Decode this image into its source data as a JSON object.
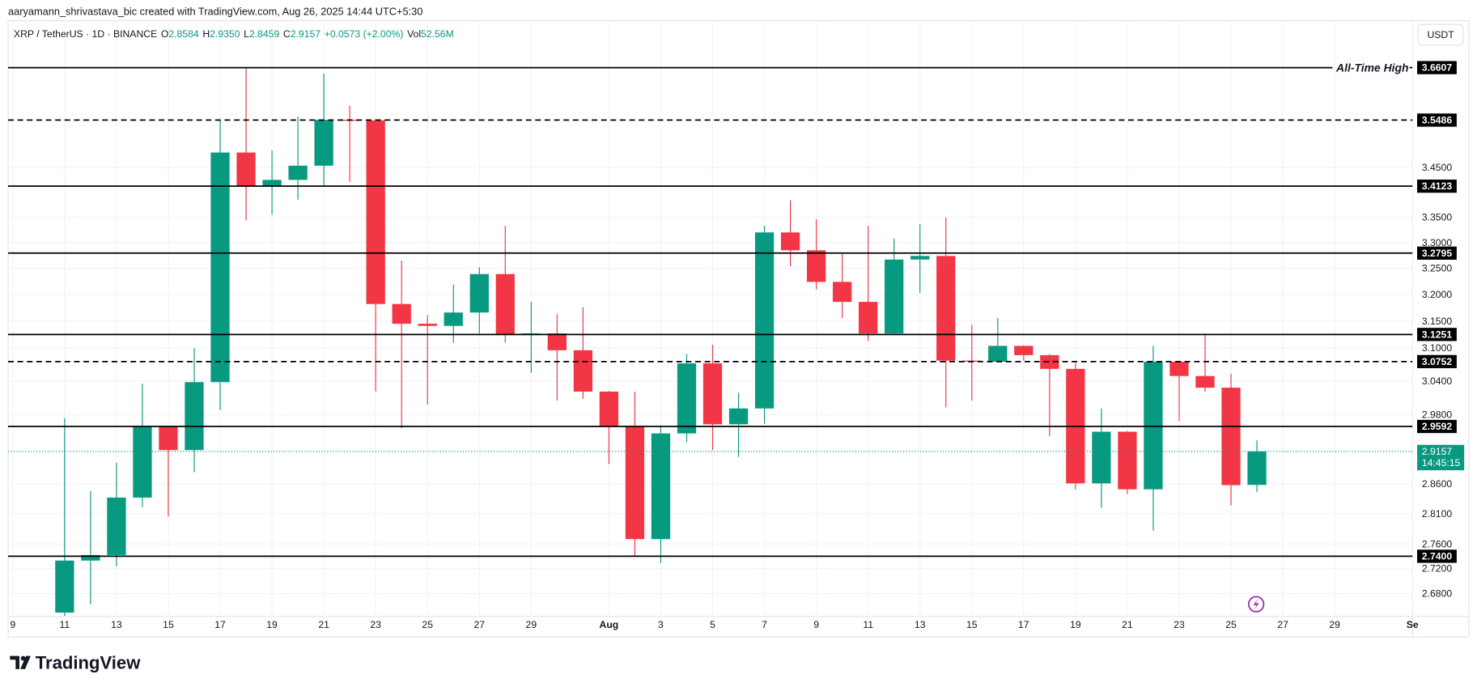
{
  "header": {
    "creator": "aaryamann_shrivastava_bic created with TradingView.com, Aug 26, 2025 14:44 UTC+5:30"
  },
  "chart_data": {
    "type": "candlestick",
    "symbol": "XRP / TetherUS · 1D · BINANCE",
    "legend_values": [
      {
        "label": "O",
        "value": "2.8584"
      },
      {
        "label": "H",
        "value": "2.9350"
      },
      {
        "label": "L",
        "value": "2.8459"
      },
      {
        "label": "C",
        "value": "2.9157"
      }
    ],
    "change": "+0.0573 (+2.00%)",
    "volume": {
      "label": "Vol",
      "value": "52.56M"
    },
    "currency": "USDT",
    "categories": [
      "9",
      null,
      "11",
      null,
      "13",
      null,
      "15",
      null,
      "17",
      null,
      "19",
      null,
      "21",
      null,
      "23",
      null,
      "25",
      null,
      "27",
      null,
      "29",
      null,
      null,
      "Aug",
      null,
      "3",
      null,
      "5",
      null,
      "7",
      null,
      "9",
      null,
      "11",
      null,
      "13",
      null,
      "15",
      null,
      "17",
      null,
      "19",
      null,
      "21",
      null,
      "23",
      null,
      "25",
      null,
      "27",
      null,
      "29",
      null,
      null,
      "Se"
    ],
    "open": [
      null,
      null,
      2.65,
      2.733,
      2.742,
      2.837,
      2.959,
      2.918,
      3.038,
      3.481,
      3.412,
      3.425,
      3.454,
      3.549,
      3.548,
      3.182,
      3.145,
      3.141,
      3.166,
      3.239,
      3.124,
      3.127,
      3.096,
      3.021,
      2.959,
      2.768,
      2.947,
      3.072,
      2.963,
      2.991,
      3.32,
      3.285,
      3.224,
      3.186,
      3.127,
      3.267,
      3.274,
      3.077,
      3.075,
      3.104,
      3.087,
      3.062,
      2.861,
      2.95,
      2.851,
      3.075,
      3.049,
      3.028,
      2.8584,
      null,
      null,
      null,
      null,
      null,
      null
    ],
    "high": [
      null,
      null,
      2.974,
      2.848,
      2.896,
      3.035,
      2.96,
      3.1,
      3.549,
      3.661,
      3.485,
      3.556,
      3.648,
      3.579,
      3.549,
      3.265,
      3.161,
      3.219,
      3.252,
      3.333,
      3.186,
      3.163,
      3.176,
      3.022,
      3.021,
      2.961,
      3.089,
      3.106,
      3.019,
      3.333,
      3.384,
      3.346,
      3.278,
      3.333,
      3.308,
      3.336,
      3.349,
      3.143,
      3.156,
      3.105,
      3.089,
      3.073,
      2.991,
      2.951,
      3.104,
      3.076,
      3.127,
      3.053,
      2.935,
      null,
      null,
      null,
      null,
      null,
      null
    ],
    "low": [
      null,
      null,
      2.645,
      2.663,
      2.724,
      2.821,
      2.805,
      2.88,
      2.988,
      3.344,
      3.355,
      3.385,
      3.412,
      3.421,
      3.021,
      2.956,
      2.998,
      3.11,
      3.127,
      3.11,
      3.055,
      3.005,
      3.008,
      2.894,
      2.741,
      2.729,
      2.932,
      2.918,
      2.906,
      2.964,
      3.254,
      3.21,
      3.156,
      3.113,
      3.126,
      3.203,
      2.993,
      3.005,
      3.074,
      3.077,
      2.942,
      2.851,
      2.82,
      2.843,
      2.782,
      2.969,
      3.021,
      2.824,
      2.8459,
      null,
      null,
      null,
      null,
      null,
      null
    ],
    "close": [
      null,
      null,
      2.733,
      2.742,
      2.837,
      2.959,
      2.918,
      3.038,
      3.481,
      3.412,
      3.425,
      3.454,
      3.549,
      3.548,
      3.182,
      3.145,
      3.141,
      3.166,
      3.239,
      3.124,
      3.127,
      3.096,
      3.021,
      2.959,
      2.768,
      2.947,
      3.072,
      2.963,
      2.991,
      3.32,
      3.285,
      3.224,
      3.186,
      3.127,
      3.267,
      3.274,
      3.077,
      3.075,
      3.104,
      3.087,
      3.062,
      2.861,
      2.95,
      2.851,
      3.075,
      3.049,
      3.028,
      2.858,
      2.9157,
      null,
      null,
      null,
      null,
      null,
      null
    ],
    "up_color": "#089981",
    "down_color": "#f23645",
    "log_scale": true,
    "grid": true,
    "ylim": [
      2.644,
      3.764
    ],
    "yticks": [
      {
        "value": 3.45,
        "label": "3.4500"
      },
      {
        "value": 3.35,
        "label": "3.3500"
      },
      {
        "value": 3.3,
        "label": "3.3000"
      },
      {
        "value": 3.25,
        "label": "3.2500"
      },
      {
        "value": 3.2,
        "label": "3.2000"
      },
      {
        "value": 3.15,
        "label": "3.1500"
      },
      {
        "value": 3.1,
        "label": "3.1000"
      },
      {
        "value": 3.04,
        "label": "3.0400"
      },
      {
        "value": 2.98,
        "label": "2.9800"
      },
      {
        "value": 2.86,
        "label": "2.8600"
      },
      {
        "value": 2.81,
        "label": "2.8100"
      },
      {
        "value": 2.76,
        "label": "2.7600"
      },
      {
        "value": 2.72,
        "label": "2.7200"
      },
      {
        "value": 2.68,
        "label": "2.6800"
      }
    ],
    "levels": [
      {
        "value": 3.6607,
        "style": "solid",
        "annotation": "All-Time High"
      },
      {
        "value": 3.5486,
        "style": "dashed"
      },
      {
        "value": 3.4123,
        "style": "solid"
      },
      {
        "value": 3.2795,
        "style": "solid"
      },
      {
        "value": 3.1251,
        "style": "solid"
      },
      {
        "value": 3.0752,
        "style": "dashed"
      },
      {
        "value": 2.9592,
        "style": "solid"
      },
      {
        "value": 2.74,
        "label": "2.7400",
        "style": "solid"
      }
    ],
    "current_price": {
      "value": 2.9157,
      "countdown": "14:45:15",
      "color": "#089981"
    }
  },
  "footer": {
    "logo": "TradingView"
  }
}
